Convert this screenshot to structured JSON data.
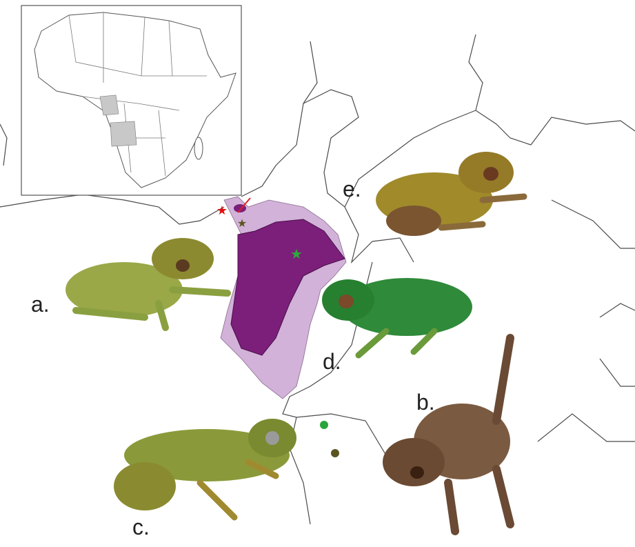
{
  "panels": [
    {
      "label": "a."
    },
    {
      "label": "b."
    },
    {
      "label": "c."
    },
    {
      "label": "d."
    },
    {
      "label": "e."
    }
  ]
}
